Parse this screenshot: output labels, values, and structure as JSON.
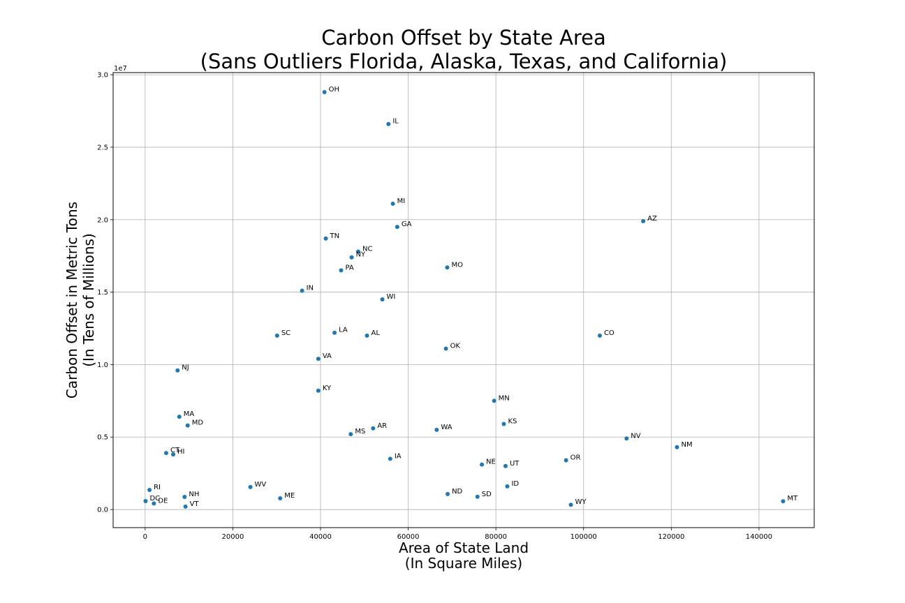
{
  "chart_data": {
    "type": "scatter",
    "title": [
      "Carbon Offset by State Area",
      "(Sans Outliers Florida, Alaska, Texas, and California)"
    ],
    "xlabel": [
      "Area of State Land",
      "(In Square Miles)"
    ],
    "ylabel": [
      "Carbon Offset in Metric Tons",
      "(In Tens of Millions)"
    ],
    "y_offset_text": "1e7",
    "xlim": [
      -7300,
      152600
    ],
    "ylim": [
      -0.125,
      3.015
    ],
    "x_ticks": [
      0,
      20000,
      40000,
      60000,
      80000,
      100000,
      120000,
      140000
    ],
    "x_tick_labels": [
      "0",
      "20000",
      "40000",
      "60000",
      "80000",
      "100000",
      "120000",
      "140000"
    ],
    "y_ticks": [
      0.0,
      0.5,
      1.0,
      1.5,
      2.0,
      2.5,
      3.0
    ],
    "y_tick_labels": [
      "0.0",
      "0.5",
      "1.0",
      "1.5",
      "2.0",
      "2.5",
      "3.0"
    ],
    "grid": true,
    "marker_color": "#1f77b4",
    "points": [
      {
        "label": "OH",
        "x": 40900,
        "y": 2.88
      },
      {
        "label": "IL",
        "x": 55500,
        "y": 2.66
      },
      {
        "label": "MI",
        "x": 56500,
        "y": 2.11
      },
      {
        "label": "AZ",
        "x": 113600,
        "y": 1.99
      },
      {
        "label": "GA",
        "x": 57500,
        "y": 1.95
      },
      {
        "label": "TN",
        "x": 41200,
        "y": 1.87
      },
      {
        "label": "NC",
        "x": 48600,
        "y": 1.78
      },
      {
        "label": "NY",
        "x": 47100,
        "y": 1.74
      },
      {
        "label": "MO",
        "x": 68900,
        "y": 1.67
      },
      {
        "label": "PA",
        "x": 44700,
        "y": 1.65
      },
      {
        "label": "IN",
        "x": 35800,
        "y": 1.51
      },
      {
        "label": "WI",
        "x": 54100,
        "y": 1.45
      },
      {
        "label": "SC",
        "x": 30100,
        "y": 1.2
      },
      {
        "label": "LA",
        "x": 43200,
        "y": 1.22
      },
      {
        "label": "AL",
        "x": 50600,
        "y": 1.2
      },
      {
        "label": "CO",
        "x": 103700,
        "y": 1.2
      },
      {
        "label": "OK",
        "x": 68600,
        "y": 1.11
      },
      {
        "label": "VA",
        "x": 39500,
        "y": 1.04
      },
      {
        "label": "NJ",
        "x": 7400,
        "y": 0.96
      },
      {
        "label": "KY",
        "x": 39500,
        "y": 0.82
      },
      {
        "label": "MN",
        "x": 79600,
        "y": 0.75
      },
      {
        "label": "MA",
        "x": 7800,
        "y": 0.64
      },
      {
        "label": "KS",
        "x": 81800,
        "y": 0.59
      },
      {
        "label": "MD",
        "x": 9700,
        "y": 0.58
      },
      {
        "label": "AR",
        "x": 52000,
        "y": 0.56
      },
      {
        "label": "WA",
        "x": 66500,
        "y": 0.55
      },
      {
        "label": "MS",
        "x": 46900,
        "y": 0.52
      },
      {
        "label": "NV",
        "x": 109800,
        "y": 0.49
      },
      {
        "label": "NM",
        "x": 121300,
        "y": 0.43
      },
      {
        "label": "CT",
        "x": 4800,
        "y": 0.39
      },
      {
        "label": "HI",
        "x": 6400,
        "y": 0.38
      },
      {
        "label": "IA",
        "x": 55900,
        "y": 0.35
      },
      {
        "label": "OR",
        "x": 96000,
        "y": 0.34
      },
      {
        "label": "NE",
        "x": 76800,
        "y": 0.31
      },
      {
        "label": "UT",
        "x": 82200,
        "y": 0.3
      },
      {
        "label": "ID",
        "x": 82600,
        "y": 0.16
      },
      {
        "label": "WV",
        "x": 24000,
        "y": 0.155
      },
      {
        "label": "RI",
        "x": 1000,
        "y": 0.135
      },
      {
        "label": "ND",
        "x": 69000,
        "y": 0.107
      },
      {
        "label": "SD",
        "x": 75800,
        "y": 0.088
      },
      {
        "label": "NH",
        "x": 9000,
        "y": 0.087
      },
      {
        "label": "ME",
        "x": 30800,
        "y": 0.077
      },
      {
        "label": "DC",
        "x": 100,
        "y": 0.058
      },
      {
        "label": "MT",
        "x": 145500,
        "y": 0.057
      },
      {
        "label": "DE",
        "x": 2000,
        "y": 0.042
      },
      {
        "label": "WY",
        "x": 97100,
        "y": 0.033
      },
      {
        "label": "VT",
        "x": 9200,
        "y": 0.02
      }
    ]
  }
}
